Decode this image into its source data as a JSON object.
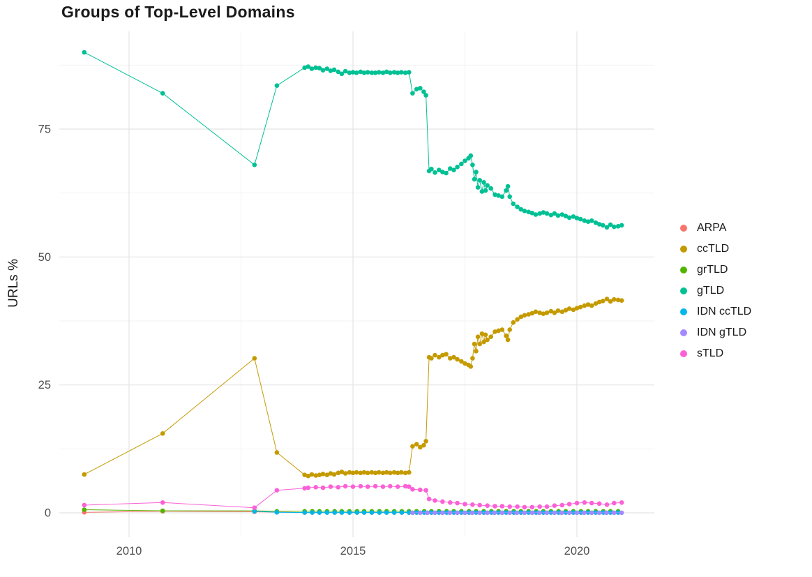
{
  "chart_data": {
    "type": "line",
    "title": "Groups of Top-Level Domains",
    "xlabel": "",
    "ylabel": "URLs %",
    "xlim": [
      2008.44,
      2021.73
    ],
    "ylim": [
      -4.8,
      94.1
    ],
    "grid": true,
    "legend_position": "right",
    "x_ticks": [
      {
        "value": 2010,
        "label": "2010"
      },
      {
        "value": 2015,
        "label": "2015"
      },
      {
        "value": 2020,
        "label": "2020"
      }
    ],
    "y_ticks": [
      {
        "value": 0,
        "label": "0"
      },
      {
        "value": 25,
        "label": "25"
      },
      {
        "value": 50,
        "label": "50"
      },
      {
        "value": 75,
        "label": "75"
      }
    ],
    "x_minor": [
      2012.5,
      2017.5
    ],
    "y_minor": [
      12.5,
      37.5,
      62.5,
      87.5
    ],
    "series": [
      {
        "name": "ARPA",
        "color": "#F8766D",
        "points": [
          [
            2009.0,
            0.1
          ],
          [
            2010.75,
            0.3
          ],
          [
            2012.8,
            0.2
          ],
          [
            2013.3,
            0.15
          ]
        ],
        "runs": [
          {
            "from": 2013.92,
            "to": 2021.0,
            "step": 0.1667,
            "value": 0.05
          }
        ]
      },
      {
        "name": "ccTLD",
        "color": "#C49A00",
        "points": [
          [
            2009.0,
            7.5
          ],
          [
            2010.75,
            15.5
          ],
          [
            2012.8,
            30.2
          ],
          [
            2013.3,
            11.8
          ],
          [
            2013.92,
            7.4
          ],
          [
            2014.0,
            7.2
          ],
          [
            2014.08,
            7.5
          ],
          [
            2014.17,
            7.3
          ],
          [
            2014.25,
            7.4
          ],
          [
            2014.33,
            7.6
          ],
          [
            2014.42,
            7.4
          ],
          [
            2014.5,
            7.7
          ],
          [
            2014.58,
            7.5
          ],
          [
            2014.67,
            7.8
          ],
          [
            2014.75,
            8.0
          ],
          [
            2014.83,
            7.7
          ],
          [
            2014.92,
            7.9
          ],
          [
            2015.0,
            7.8
          ],
          [
            2015.08,
            7.9
          ],
          [
            2015.17,
            7.8
          ],
          [
            2015.25,
            7.9
          ],
          [
            2015.33,
            7.8
          ],
          [
            2015.42,
            7.9
          ],
          [
            2015.5,
            7.8
          ],
          [
            2015.58,
            7.9
          ],
          [
            2015.67,
            7.8
          ],
          [
            2015.75,
            7.9
          ],
          [
            2015.83,
            7.8
          ],
          [
            2015.92,
            7.9
          ],
          [
            2016.0,
            7.8
          ],
          [
            2016.08,
            7.9
          ],
          [
            2016.17,
            7.8
          ],
          [
            2016.25,
            7.9
          ],
          [
            2016.33,
            13.0
          ],
          [
            2016.42,
            13.4
          ],
          [
            2016.5,
            12.8
          ],
          [
            2016.58,
            13.2
          ],
          [
            2016.63,
            14.0
          ],
          [
            2016.7,
            30.4
          ],
          [
            2016.75,
            30.2
          ],
          [
            2016.83,
            30.8
          ],
          [
            2016.92,
            30.4
          ],
          [
            2017.0,
            30.8
          ],
          [
            2017.08,
            31.0
          ],
          [
            2017.17,
            30.2
          ],
          [
            2017.25,
            30.4
          ],
          [
            2017.33,
            30.0
          ],
          [
            2017.42,
            29.6
          ],
          [
            2017.5,
            29.2
          ],
          [
            2017.58,
            28.9
          ],
          [
            2017.63,
            28.6
          ],
          [
            2017.67,
            30.2
          ],
          [
            2017.71,
            33.0
          ],
          [
            2017.75,
            31.6
          ],
          [
            2017.79,
            34.4
          ],
          [
            2017.83,
            33.0
          ],
          [
            2017.88,
            35.0
          ],
          [
            2017.92,
            33.4
          ],
          [
            2017.96,
            34.8
          ],
          [
            2018.0,
            33.8
          ],
          [
            2018.08,
            34.4
          ],
          [
            2018.17,
            35.4
          ],
          [
            2018.25,
            35.6
          ],
          [
            2018.33,
            35.8
          ],
          [
            2018.42,
            34.6
          ],
          [
            2018.46,
            33.8
          ],
          [
            2018.5,
            35.8
          ],
          [
            2018.58,
            37.2
          ],
          [
            2018.67,
            37.8
          ],
          [
            2018.75,
            38.3
          ],
          [
            2018.83,
            38.6
          ],
          [
            2018.92,
            38.8
          ],
          [
            2019.0,
            39.0
          ],
          [
            2019.08,
            39.3
          ],
          [
            2019.17,
            39.1
          ],
          [
            2019.25,
            38.9
          ],
          [
            2019.33,
            39.1
          ],
          [
            2019.42,
            39.4
          ],
          [
            2019.5,
            39.1
          ],
          [
            2019.58,
            39.5
          ],
          [
            2019.67,
            39.3
          ],
          [
            2019.75,
            39.6
          ],
          [
            2019.83,
            39.9
          ],
          [
            2019.92,
            39.7
          ],
          [
            2020.0,
            40.0
          ],
          [
            2020.08,
            40.2
          ],
          [
            2020.17,
            40.5
          ],
          [
            2020.25,
            40.7
          ],
          [
            2020.33,
            40.5
          ],
          [
            2020.42,
            40.9
          ],
          [
            2020.5,
            41.2
          ],
          [
            2020.58,
            41.4
          ],
          [
            2020.67,
            41.8
          ],
          [
            2020.75,
            41.3
          ],
          [
            2020.83,
            41.7
          ],
          [
            2020.92,
            41.6
          ],
          [
            2021.0,
            41.5
          ]
        ]
      },
      {
        "name": "grTLD",
        "color": "#53B400",
        "points": [
          [
            2009.0,
            0.6
          ],
          [
            2010.75,
            0.4
          ],
          [
            2012.8,
            0.4
          ],
          [
            2013.3,
            0.3
          ]
        ],
        "runs": [
          {
            "from": 2013.92,
            "to": 2021.0,
            "step": 0.1667,
            "value": 0.3
          }
        ]
      },
      {
        "name": "gTLD",
        "color": "#00C094",
        "points": [
          [
            2009.0,
            90.0
          ],
          [
            2010.75,
            82.0
          ],
          [
            2012.8,
            68.0
          ],
          [
            2013.3,
            83.5
          ],
          [
            2013.92,
            87.0
          ],
          [
            2014.0,
            87.2
          ],
          [
            2014.08,
            86.8
          ],
          [
            2014.17,
            87.0
          ],
          [
            2014.25,
            86.9
          ],
          [
            2014.33,
            86.5
          ],
          [
            2014.42,
            86.8
          ],
          [
            2014.5,
            86.4
          ],
          [
            2014.58,
            86.6
          ],
          [
            2014.67,
            86.2
          ],
          [
            2014.75,
            85.8
          ],
          [
            2014.83,
            86.3
          ],
          [
            2014.92,
            86.0
          ],
          [
            2015.0,
            86.1
          ],
          [
            2015.08,
            86.0
          ],
          [
            2015.17,
            86.2
          ],
          [
            2015.25,
            86.0
          ],
          [
            2015.33,
            86.1
          ],
          [
            2015.42,
            86.0
          ],
          [
            2015.5,
            86.0
          ],
          [
            2015.58,
            86.1
          ],
          [
            2015.67,
            86.0
          ],
          [
            2015.75,
            86.2
          ],
          [
            2015.83,
            86.0
          ],
          [
            2015.92,
            86.1
          ],
          [
            2016.0,
            86.0
          ],
          [
            2016.08,
            86.1
          ],
          [
            2016.17,
            86.0
          ],
          [
            2016.25,
            86.1
          ],
          [
            2016.33,
            82.0
          ],
          [
            2016.42,
            82.8
          ],
          [
            2016.5,
            83.0
          ],
          [
            2016.58,
            82.3
          ],
          [
            2016.63,
            81.6
          ],
          [
            2016.7,
            66.8
          ],
          [
            2016.75,
            67.2
          ],
          [
            2016.83,
            66.5
          ],
          [
            2016.92,
            67.0
          ],
          [
            2017.0,
            66.6
          ],
          [
            2017.08,
            66.4
          ],
          [
            2017.17,
            67.3
          ],
          [
            2017.25,
            67.0
          ],
          [
            2017.33,
            67.6
          ],
          [
            2017.42,
            68.2
          ],
          [
            2017.5,
            68.8
          ],
          [
            2017.58,
            69.3
          ],
          [
            2017.63,
            69.8
          ],
          [
            2017.67,
            68.0
          ],
          [
            2017.71,
            65.2
          ],
          [
            2017.75,
            66.6
          ],
          [
            2017.79,
            63.6
          ],
          [
            2017.83,
            65.0
          ],
          [
            2017.88,
            62.8
          ],
          [
            2017.92,
            64.6
          ],
          [
            2017.96,
            63.0
          ],
          [
            2018.0,
            64.0
          ],
          [
            2018.08,
            63.4
          ],
          [
            2018.17,
            62.2
          ],
          [
            2018.25,
            62.0
          ],
          [
            2018.33,
            61.8
          ],
          [
            2018.42,
            63.0
          ],
          [
            2018.46,
            63.8
          ],
          [
            2018.5,
            61.8
          ],
          [
            2018.58,
            60.4
          ],
          [
            2018.67,
            59.8
          ],
          [
            2018.75,
            59.3
          ],
          [
            2018.83,
            59.0
          ],
          [
            2018.92,
            58.8
          ],
          [
            2019.0,
            58.6
          ],
          [
            2019.08,
            58.3
          ],
          [
            2019.17,
            58.5
          ],
          [
            2019.25,
            58.7
          ],
          [
            2019.33,
            58.5
          ],
          [
            2019.42,
            58.2
          ],
          [
            2019.5,
            58.5
          ],
          [
            2019.58,
            58.1
          ],
          [
            2019.67,
            58.3
          ],
          [
            2019.75,
            58.0
          ],
          [
            2019.83,
            57.7
          ],
          [
            2019.92,
            57.9
          ],
          [
            2020.0,
            57.6
          ],
          [
            2020.08,
            57.4
          ],
          [
            2020.17,
            57.1
          ],
          [
            2020.25,
            56.9
          ],
          [
            2020.33,
            57.1
          ],
          [
            2020.42,
            56.7
          ],
          [
            2020.5,
            56.4
          ],
          [
            2020.58,
            56.2
          ],
          [
            2020.67,
            55.8
          ],
          [
            2020.75,
            56.3
          ],
          [
            2020.83,
            55.9
          ],
          [
            2020.92,
            56.0
          ],
          [
            2021.0,
            56.2
          ]
        ]
      },
      {
        "name": "IDN ccTLD",
        "color": "#00B6EB",
        "points": [
          [
            2012.8,
            0.3
          ],
          [
            2013.3,
            0.1
          ]
        ],
        "runs": [
          {
            "from": 2013.92,
            "to": 2021.0,
            "step": 0.1667,
            "value": 0.05
          }
        ]
      },
      {
        "name": "IDN gTLD",
        "color": "#A58AFF",
        "points": [],
        "runs": [
          {
            "from": 2016.33,
            "to": 2021.0,
            "step": 0.1667,
            "value": 0.02
          }
        ]
      },
      {
        "name": "sTLD",
        "color": "#FB61D7",
        "points": [
          [
            2009.0,
            1.5
          ],
          [
            2010.75,
            2.0
          ],
          [
            2012.8,
            1.0
          ],
          [
            2013.3,
            4.4
          ],
          [
            2013.92,
            4.8
          ],
          [
            2014.0,
            4.9
          ],
          [
            2014.17,
            5.0
          ],
          [
            2014.33,
            4.9
          ],
          [
            2014.5,
            5.1
          ],
          [
            2014.67,
            5.0
          ],
          [
            2014.83,
            5.2
          ],
          [
            2015.0,
            5.1
          ],
          [
            2015.17,
            5.2
          ],
          [
            2015.33,
            5.1
          ],
          [
            2015.5,
            5.2
          ],
          [
            2015.67,
            5.1
          ],
          [
            2015.83,
            5.2
          ],
          [
            2016.0,
            5.1
          ],
          [
            2016.17,
            5.2
          ],
          [
            2016.25,
            5.1
          ],
          [
            2016.33,
            4.6
          ],
          [
            2016.5,
            4.5
          ],
          [
            2016.63,
            4.4
          ],
          [
            2016.7,
            2.7
          ],
          [
            2016.83,
            2.4
          ],
          [
            2017.0,
            2.2
          ],
          [
            2017.17,
            2.0
          ],
          [
            2017.33,
            1.9
          ],
          [
            2017.5,
            1.7
          ],
          [
            2017.67,
            1.6
          ],
          [
            2017.83,
            1.5
          ],
          [
            2018.0,
            1.4
          ],
          [
            2018.17,
            1.3
          ],
          [
            2018.33,
            1.3
          ],
          [
            2018.5,
            1.2
          ],
          [
            2018.67,
            1.2
          ],
          [
            2018.83,
            1.1
          ],
          [
            2019.0,
            1.1
          ],
          [
            2019.17,
            1.2
          ],
          [
            2019.33,
            1.2
          ],
          [
            2019.5,
            1.4
          ],
          [
            2019.67,
            1.5
          ],
          [
            2019.83,
            1.7
          ],
          [
            2020.0,
            1.9
          ],
          [
            2020.17,
            2.0
          ],
          [
            2020.33,
            1.9
          ],
          [
            2020.5,
            1.8
          ],
          [
            2020.67,
            1.6
          ],
          [
            2020.83,
            1.9
          ],
          [
            2021.0,
            2.0
          ]
        ]
      }
    ]
  }
}
